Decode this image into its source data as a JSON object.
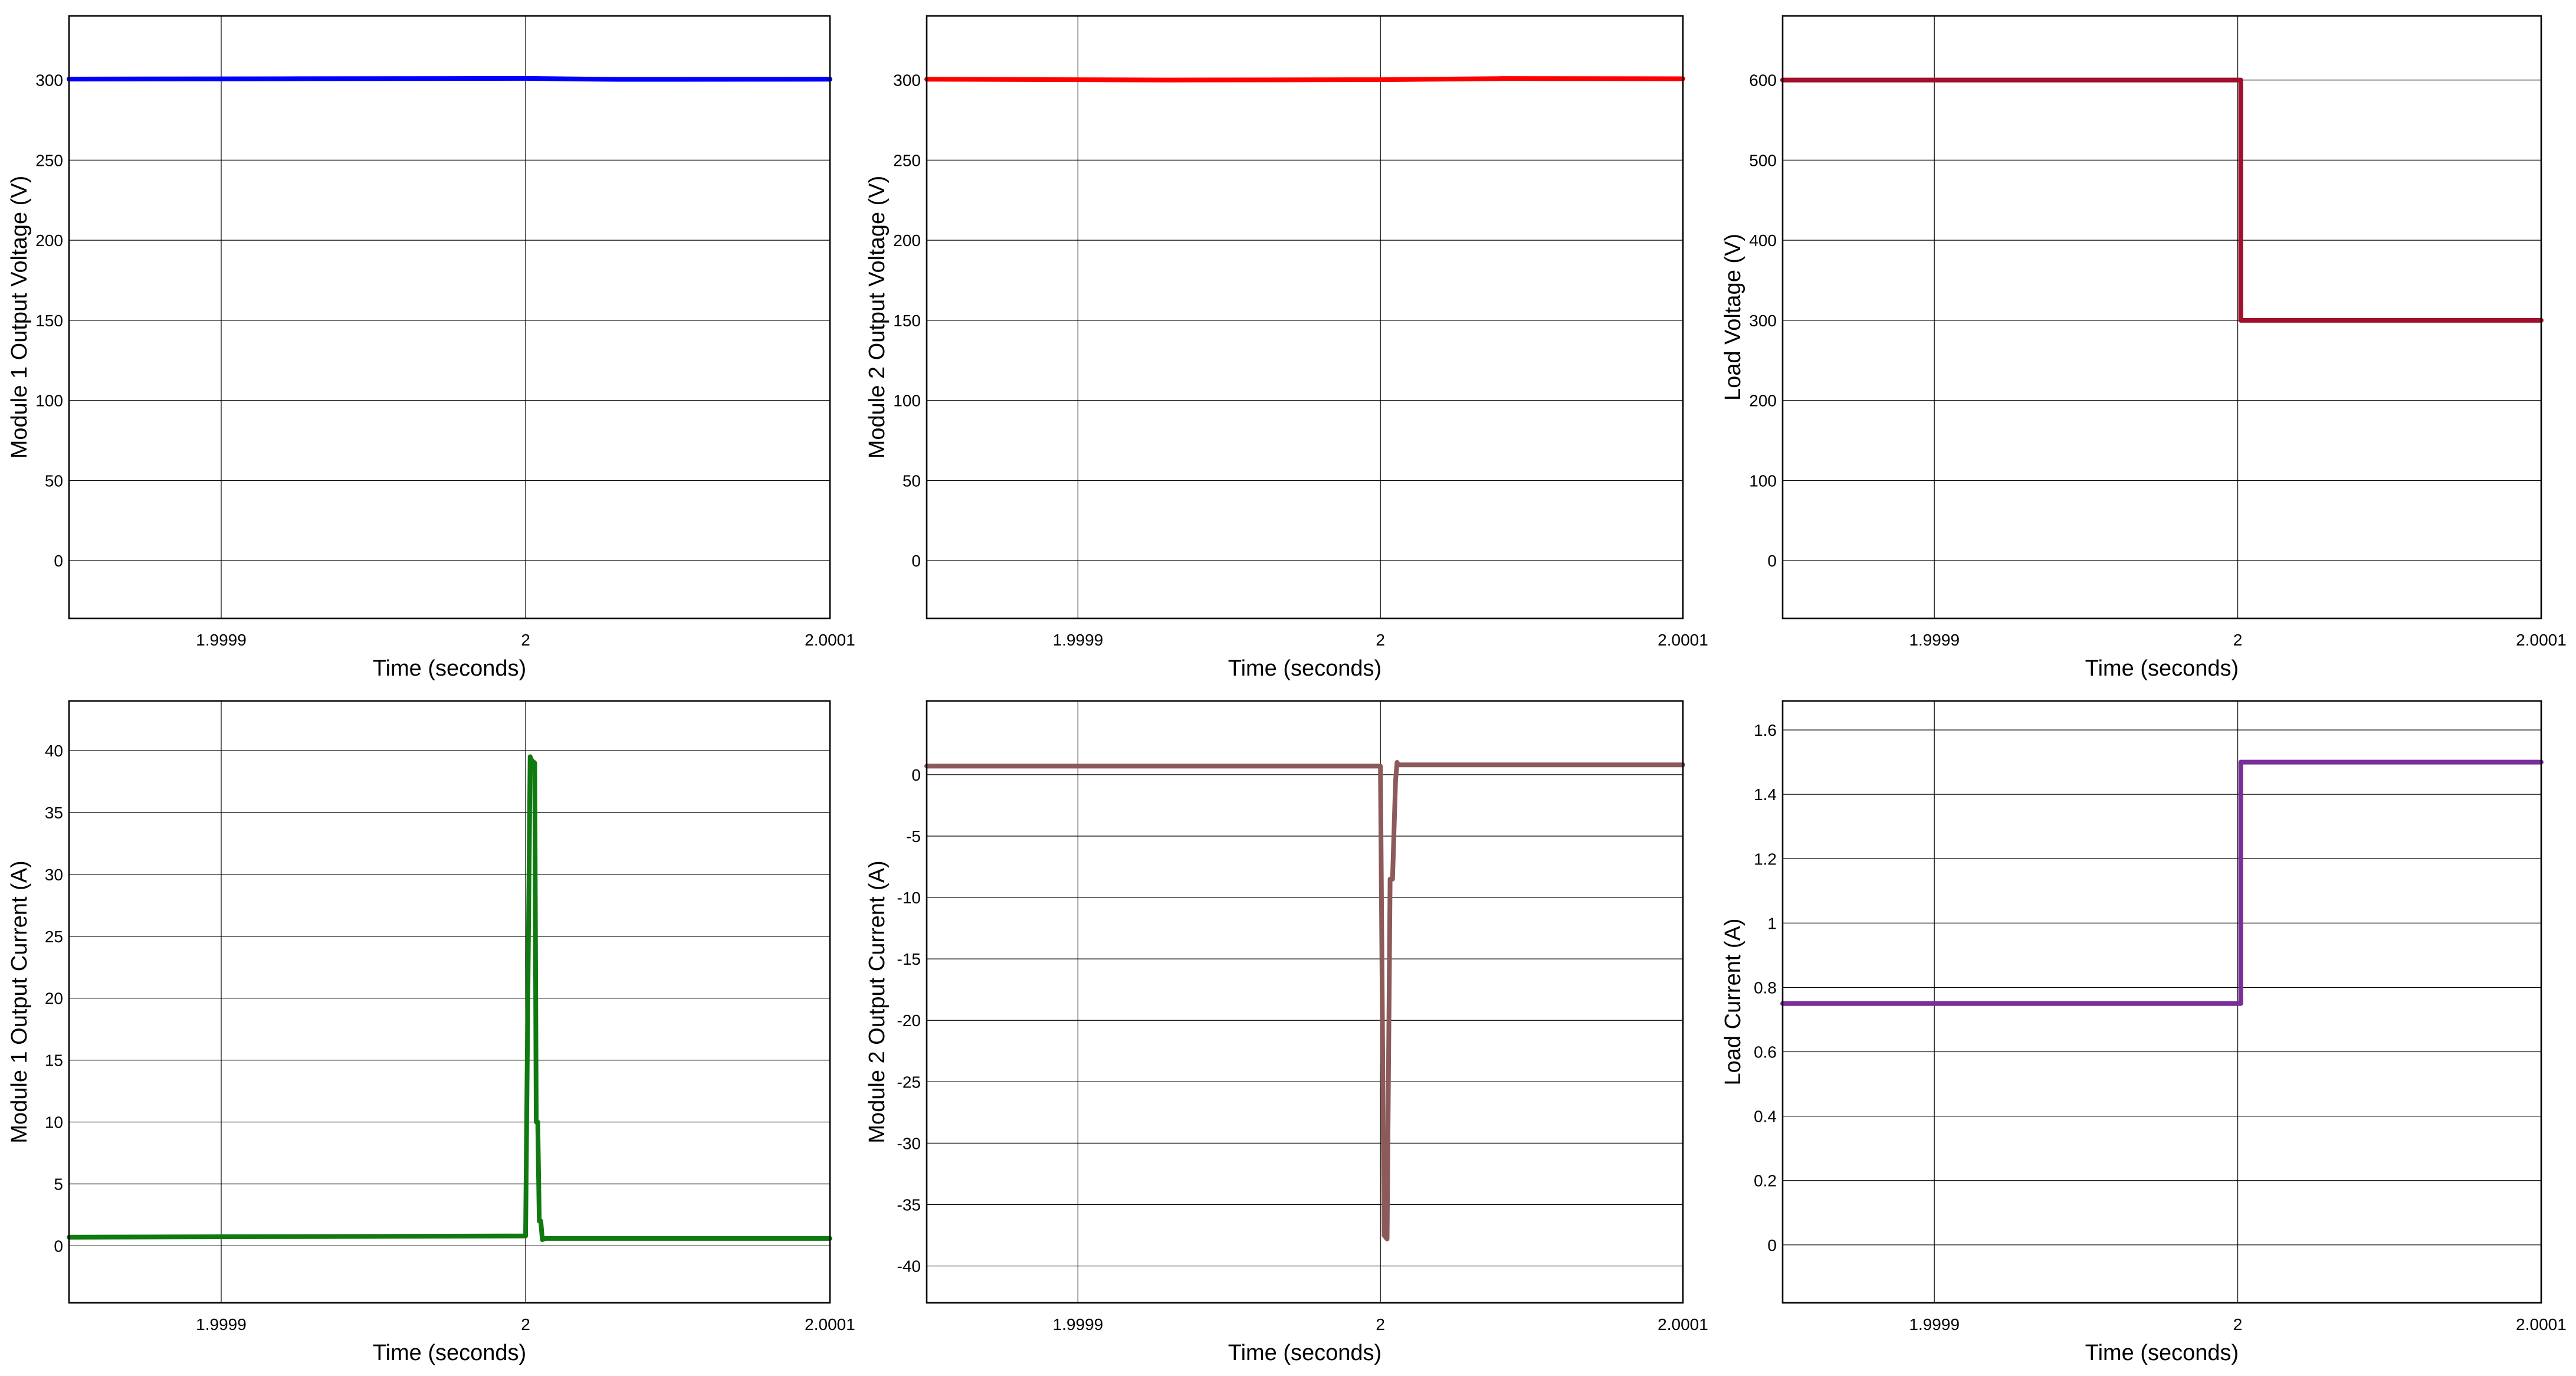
{
  "figure_title": "",
  "chart_data": [
    {
      "type": "line",
      "xlabel": "Time (seconds)",
      "ylabel": "Module 1 Output Voltage (V)",
      "xlim": [
        1.99985,
        2.0001
      ],
      "ylim": [
        -36,
        340
      ],
      "xticks": [
        1.9999,
        2.0,
        2.0001
      ],
      "xtick_labels": [
        "1.9999",
        "2",
        "2.0001"
      ],
      "yticks": [
        0,
        50,
        100,
        150,
        200,
        250,
        300
      ],
      "ytick_labels": [
        "0",
        "50",
        "100",
        "150",
        "200",
        "250",
        "300"
      ],
      "grid": true,
      "series": [
        {
          "color": "#0000ff",
          "x": [
            1.99985,
            1.99992,
            2.0,
            2.00003,
            2.0001
          ],
          "y": [
            300.6,
            300.8,
            301.0,
            300.4,
            300.5
          ]
        }
      ]
    },
    {
      "type": "line",
      "xlabel": "Time (seconds)",
      "ylabel": "Module 2 Output Voltage (V)",
      "xlim": [
        1.99985,
        2.0001
      ],
      "ylim": [
        -36,
        340
      ],
      "xticks": [
        1.9999,
        2.0,
        2.0001
      ],
      "xtick_labels": [
        "1.9999",
        "2",
        "2.0001"
      ],
      "yticks": [
        0,
        50,
        100,
        150,
        200,
        250,
        300
      ],
      "ytick_labels": [
        "0",
        "50",
        "100",
        "150",
        "200",
        "250",
        "300"
      ],
      "grid": true,
      "series": [
        {
          "color": "#ff0000",
          "x": [
            1.99985,
            1.99993,
            2.0,
            2.00004,
            2.0001
          ],
          "y": [
            300.5,
            300.0,
            300.2,
            300.9,
            300.8
          ]
        }
      ]
    },
    {
      "type": "line",
      "xlabel": "Time (seconds)",
      "ylabel": "Load Voltage (V)",
      "xlim": [
        1.99985,
        2.0001
      ],
      "ylim": [
        -72,
        680
      ],
      "xticks": [
        1.9999,
        2.0,
        2.0001
      ],
      "xtick_labels": [
        "1.9999",
        "2",
        "2.0001"
      ],
      "yticks": [
        0,
        100,
        200,
        300,
        400,
        500,
        600
      ],
      "ytick_labels": [
        "0",
        "100",
        "200",
        "300",
        "400",
        "500",
        "600"
      ],
      "grid": true,
      "series": [
        {
          "color": "#a0102a",
          "x": [
            1.99985,
            2.000001,
            2.000001,
            2.0001
          ],
          "y": [
            600,
            600,
            300,
            300
          ]
        }
      ]
    },
    {
      "type": "line",
      "xlabel": "Time (seconds)",
      "ylabel": "Module 1 Output Current (A)",
      "xlim": [
        1.99985,
        2.0001
      ],
      "ylim": [
        -4.6,
        44
      ],
      "xticks": [
        1.9999,
        2.0,
        2.0001
      ],
      "xtick_labels": [
        "1.9999",
        "2",
        "2.0001"
      ],
      "yticks": [
        0,
        5,
        10,
        15,
        20,
        25,
        30,
        35,
        40
      ],
      "ytick_labels": [
        "0",
        "5",
        "10",
        "15",
        "20",
        "25",
        "30",
        "35",
        "40"
      ],
      "grid": true,
      "series": [
        {
          "color": "#107a10",
          "x": [
            1.99985,
            2.0,
            2.0000015,
            2.000002,
            2.000003,
            2.0000035,
            2.000004,
            2.0000045,
            2.000005,
            2.0000055,
            2.0000065,
            2.0001
          ],
          "y": [
            0.7,
            0.8,
            39.5,
            39.2,
            39.0,
            10.0,
            10.0,
            2.0,
            2.0,
            0.5,
            0.6,
            0.6
          ]
        }
      ]
    },
    {
      "type": "line",
      "xlabel": "Time (seconds)",
      "ylabel": "Module 2 Output Current (A)",
      "xlim": [
        1.99985,
        2.0001
      ],
      "ylim": [
        -43,
        6
      ],
      "xticks": [
        1.9999,
        2.0,
        2.0001
      ],
      "xtick_labels": [
        "1.9999",
        "2",
        "2.0001"
      ],
      "yticks": [
        0,
        -5,
        -10,
        -15,
        -20,
        -25,
        -30,
        -35,
        -40
      ],
      "ytick_labels": [
        "0",
        "-5",
        "-10",
        "-15",
        "-20",
        "-25",
        "-30",
        "-35",
        "-40"
      ],
      "grid": true,
      "series": [
        {
          "color": "#8c5a5a",
          "x": [
            1.99985,
            2.0,
            2.0000012,
            2.0000022,
            2.0000032,
            2.000004,
            2.000005,
            2.0000055,
            2.000006,
            2.0001
          ],
          "y": [
            0.7,
            0.7,
            -37.5,
            -37.8,
            -8.5,
            -8.5,
            -0.5,
            1.0,
            0.8,
            0.8
          ]
        }
      ]
    },
    {
      "type": "line",
      "xlabel": "Time (seconds)",
      "ylabel": "Load Current (A)",
      "xlim": [
        1.99985,
        2.0001
      ],
      "ylim": [
        -0.18,
        1.69
      ],
      "xticks": [
        1.9999,
        2.0,
        2.0001
      ],
      "xtick_labels": [
        "1.9999",
        "2",
        "2.0001"
      ],
      "yticks": [
        0,
        0.2,
        0.4,
        0.6,
        0.8,
        1,
        1.2,
        1.4,
        1.6
      ],
      "ytick_labels": [
        "0",
        "0.2",
        "0.4",
        "0.6",
        "0.8",
        "1",
        "1.2",
        "1.4",
        "1.6"
      ],
      "grid": true,
      "series": [
        {
          "color": "#7b2d9a",
          "x": [
            1.99985,
            2.000001,
            2.000001,
            2.0001
          ],
          "y": [
            0.75,
            0.75,
            1.5,
            1.5
          ]
        }
      ]
    }
  ]
}
